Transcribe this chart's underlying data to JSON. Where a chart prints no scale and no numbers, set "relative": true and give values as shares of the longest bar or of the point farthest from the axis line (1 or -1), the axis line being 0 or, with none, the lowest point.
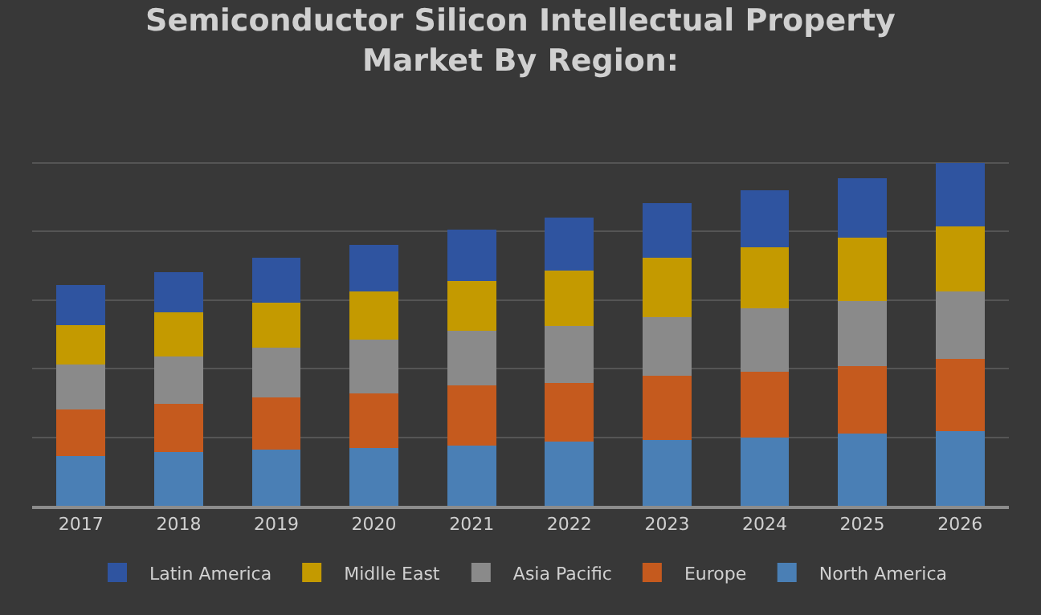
{
  "chart_data": {
    "type": "bar",
    "title": "Semiconductor Silicon Intellectual Property Market By Region:",
    "categories": [
      "2017",
      "2018",
      "2019",
      "2020",
      "2021",
      "2022",
      "2023",
      "2024",
      "2025",
      "2026"
    ],
    "relative": true,
    "stacked": true,
    "grid": "y",
    "legend": "bottom",
    "series": [
      {
        "name": "North America",
        "color": "#4a7fb5",
        "values": [
          0.144,
          0.156,
          0.164,
          0.168,
          0.175,
          0.187,
          0.193,
          0.199,
          0.211,
          0.218
        ]
      },
      {
        "name": "Europe",
        "color": "#c55a1e",
        "values": [
          0.136,
          0.142,
          0.152,
          0.16,
          0.175,
          0.172,
          0.185,
          0.191,
          0.197,
          0.209
        ]
      },
      {
        "name": "Asia Pacific",
        "color": "#8a8a8a",
        "values": [
          0.131,
          0.138,
          0.144,
          0.156,
          0.16,
          0.166,
          0.172,
          0.185,
          0.189,
          0.197
        ]
      },
      {
        "name": "Midlle East",
        "color": "#c49a00",
        "values": [
          0.115,
          0.127,
          0.133,
          0.14,
          0.146,
          0.16,
          0.172,
          0.179,
          0.185,
          0.191
        ]
      },
      {
        "name": "Latin America",
        "color": "#2f54a0",
        "values": [
          0.117,
          0.117,
          0.129,
          0.136,
          0.148,
          0.154,
          0.16,
          0.166,
          0.172,
          0.185
        ]
      }
    ]
  }
}
